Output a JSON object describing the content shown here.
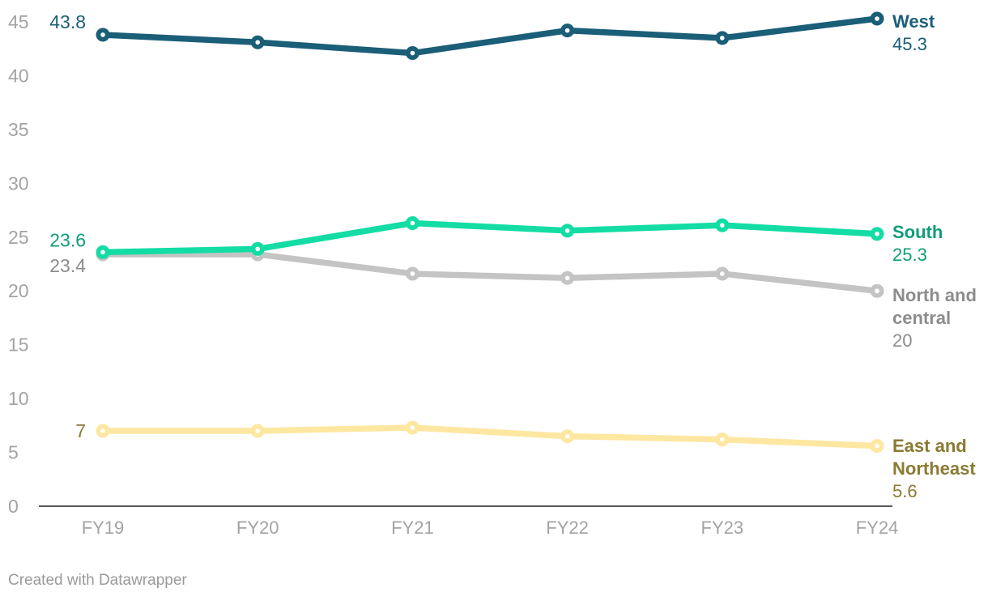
{
  "chart_data": {
    "type": "line",
    "categories": [
      "FY19",
      "FY20",
      "FY21",
      "FY22",
      "FY23",
      "FY24"
    ],
    "ylim": [
      0,
      45
    ],
    "yticks": [
      0,
      5,
      10,
      15,
      20,
      25,
      30,
      35,
      40,
      45
    ],
    "grid": false,
    "series": [
      {
        "name": "West",
        "name_lines": [
          "West"
        ],
        "color": "#1b5e78",
        "values": [
          43.8,
          43.1,
          42.1,
          44.2,
          43.5,
          45.3
        ],
        "start_label": "43.8",
        "end_label": "45.3"
      },
      {
        "name": "North and central",
        "name_lines": [
          "North and",
          "central"
        ],
        "color": "#c4c4c4",
        "label_color": "#8c8c8c",
        "values": [
          23.4,
          23.4,
          21.6,
          21.2,
          21.6,
          20.0
        ],
        "start_label": "23.4",
        "end_label": "20"
      },
      {
        "name": "South",
        "name_lines": [
          "South"
        ],
        "color": "#14dca5",
        "label_color": "#0f9e78",
        "values": [
          23.6,
          23.9,
          26.3,
          25.6,
          26.1,
          25.3
        ],
        "start_label": "23.6",
        "end_label": "25.3"
      },
      {
        "name": "East and Northeast",
        "name_lines": [
          "East and",
          "Northeast"
        ],
        "color": "#fde7a1",
        "label_color": "#8a7a33",
        "values": [
          7.0,
          7.0,
          7.3,
          6.5,
          6.2,
          5.6
        ],
        "start_label": "7",
        "end_label": "5.6"
      }
    ]
  },
  "footer": {
    "credit": "Created with Datawrapper"
  }
}
